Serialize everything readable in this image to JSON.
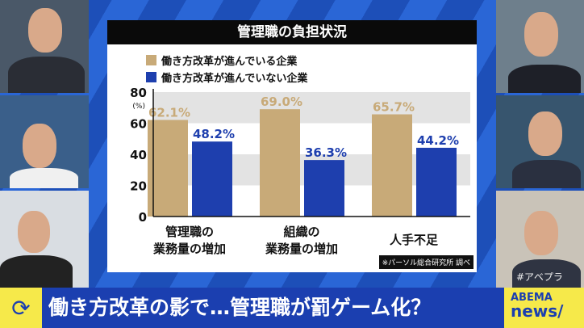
{
  "chart_data": {
    "type": "bar",
    "title": "管理職の負担状況",
    "categories": [
      [
        "管理職の",
        "業務量の増加"
      ],
      [
        "組織の",
        "業務量の増加"
      ],
      [
        "人手不足"
      ]
    ],
    "series": [
      {
        "name": "働き方改革が進んでいる企業",
        "values": [
          62.1,
          69.0,
          65.7
        ],
        "labels": [
          "62.1%",
          "69.0%",
          "65.7%"
        ],
        "color": "#c8aa78"
      },
      {
        "name": "働き方改革が進んでいない企業",
        "values": [
          48.2,
          36.3,
          44.2
        ],
        "labels": [
          "48.2%",
          "36.3%",
          "44.2%"
        ],
        "color": "#1e3fae"
      }
    ],
    "ylabel": "(%)",
    "yticks": [
      0,
      20,
      40,
      60,
      80
    ],
    "ylim": [
      0,
      80
    ],
    "grid": "alternating bands",
    "legend": "top-left",
    "source": "※パーソル総合研究所 調べ"
  },
  "banner": {
    "text": "働き方改革の影で…管理職が罰ゲーム化？",
    "icon": "refresh-cycle-icon"
  },
  "logo": {
    "line1": "ABEMA",
    "line2": "news/"
  },
  "hashtag": "#アベプラ"
}
